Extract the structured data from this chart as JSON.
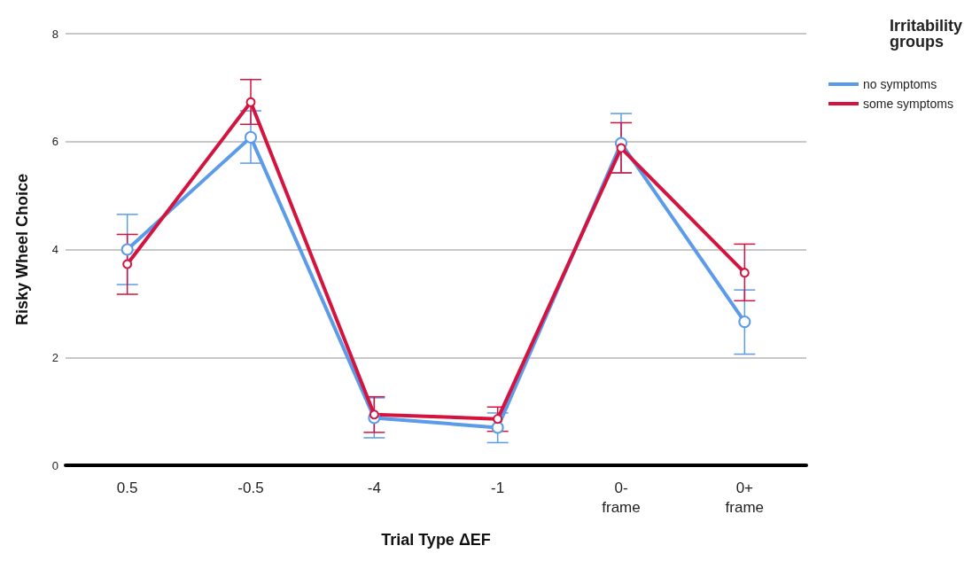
{
  "chart_data": {
    "type": "line",
    "xlabel": "Trial Type ΔEF",
    "ylabel": "Risky Wheel Choice",
    "legend_title": "Irritability groups",
    "categories": [
      "0.5",
      "-0.5",
      "-4",
      "-1",
      "0-\nframe",
      "0+\nframe"
    ],
    "series": [
      {
        "name": "no symptoms",
        "color": "#5b9bea",
        "values": [
          4.0,
          6.08,
          0.88,
          0.7,
          5.97,
          2.66
        ],
        "errors": [
          [
            3.35,
            4.65
          ],
          [
            5.6,
            6.57
          ],
          [
            0.51,
            1.25
          ],
          [
            0.42,
            0.97
          ],
          [
            5.42,
            6.52
          ],
          [
            2.06,
            3.25
          ]
        ]
      },
      {
        "name": "some symptoms",
        "color": "#d4133f",
        "values": [
          3.73,
          6.73,
          0.94,
          0.86,
          5.88,
          3.57
        ],
        "errors": [
          [
            3.17,
            4.28
          ],
          [
            6.32,
            7.15
          ],
          [
            0.61,
            1.27
          ],
          [
            0.63,
            1.08
          ],
          [
            5.42,
            6.35
          ],
          [
            3.05,
            4.1
          ]
        ]
      }
    ],
    "ylim": [
      0,
      8
    ],
    "yticks": [
      0,
      2,
      4,
      6,
      8
    ],
    "grid": "y",
    "legend": "top right",
    "marker": "circle",
    "line_style": "solid"
  }
}
